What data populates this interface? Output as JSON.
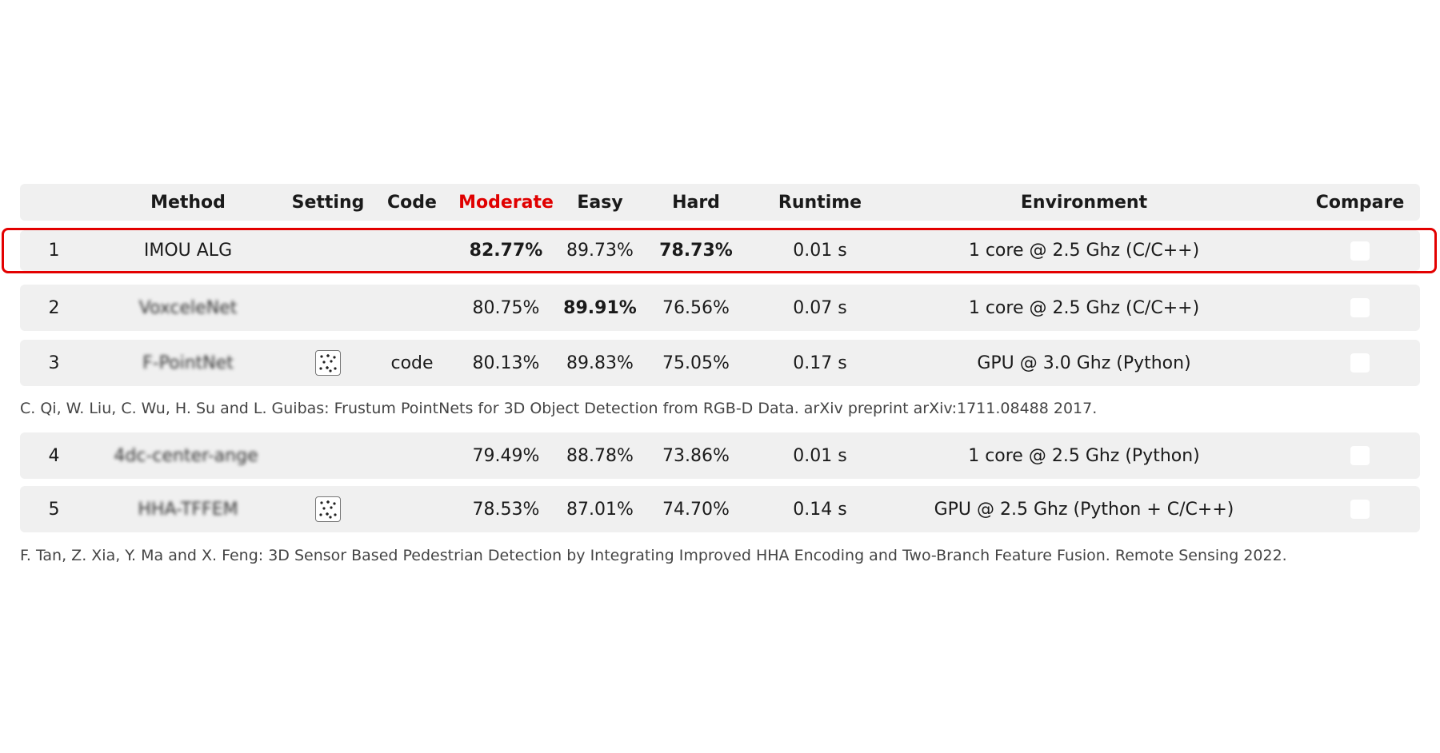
{
  "header": {
    "method": "Method",
    "setting": "Setting",
    "code": "Code",
    "moderate": "Moderate",
    "easy": "Easy",
    "hard": "Hard",
    "runtime": "Runtime",
    "environment": "Environment",
    "compare": "Compare"
  },
  "colors": {
    "selected_column": "#e00000",
    "highlight_border": "#e30000",
    "row_bg": "#f0f0f0"
  },
  "rows": [
    {
      "rank": "1",
      "method": "IMOU ALG",
      "code": "",
      "moderate": "82.77%",
      "easy": "89.73%",
      "hard": "78.73%",
      "runtime": "0.01 s",
      "environment": "1 core @ 2.5 Ghz (C/C++)"
    },
    {
      "rank": "2",
      "method": "VoxceleNet",
      "code": "",
      "moderate": "80.75%",
      "easy": "89.91%",
      "hard": "76.56%",
      "runtime": "0.07 s",
      "environment": "1 core @ 2.5 Ghz (C/C++)"
    },
    {
      "rank": "3",
      "method": "F-PointNet",
      "code": "code",
      "moderate": "80.13%",
      "easy": "89.83%",
      "hard": "75.05%",
      "runtime": "0.17 s",
      "environment": "GPU @ 3.0 Ghz (Python)"
    },
    {
      "rank": "4",
      "method": "4dc-center-ange",
      "code": "",
      "moderate": "79.49%",
      "easy": "88.78%",
      "hard": "73.86%",
      "runtime": "0.01 s",
      "environment": "1 core @ 2.5 Ghz (Python)"
    },
    {
      "rank": "5",
      "method": "HHA-TFFEM",
      "code": "",
      "moderate": "78.53%",
      "easy": "87.01%",
      "hard": "74.70%",
      "runtime": "0.14 s",
      "environment": "GPU @ 2.5 Ghz (Python + C/C++)"
    }
  ],
  "references": {
    "fpointnet": "C. Qi, W. Liu, C. Wu, H. Su and L. Guibas: Frustum PointNets for 3D Object Detection from RGB-D Data. arXiv preprint arXiv:1711.08488 2017.",
    "hhatffem": "F. Tan, Z. Xia, Y. Ma and X. Feng: 3D Sensor Based Pedestrian Detection by Integrating Improved HHA Encoding and Two-Branch Feature Fusion. Remote Sensing 2022."
  },
  "icons": {
    "setting": "point-cloud-icon"
  }
}
